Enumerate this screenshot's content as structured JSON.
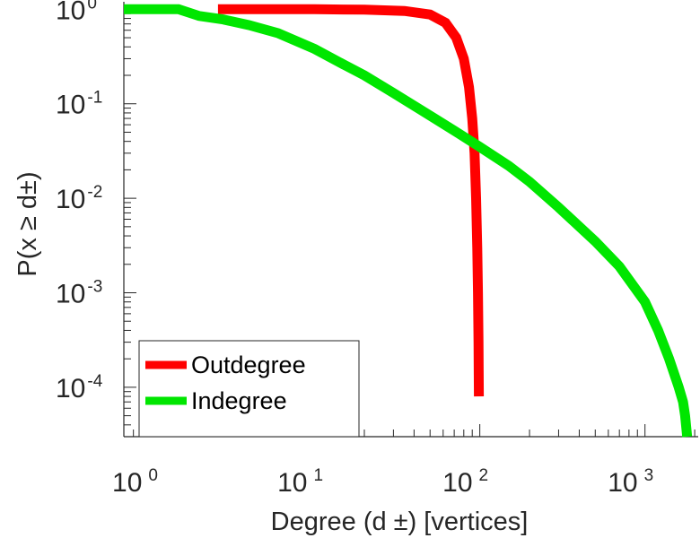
{
  "chart_data": {
    "type": "line",
    "scale": {
      "x": "log",
      "y": "log"
    },
    "xlabel": "Degree (d  ±) [vertices]",
    "ylabel": "P(x ≥ d±)",
    "xlim": [
      0.7,
      2100
    ],
    "ylim": [
      3e-05,
      1.2
    ],
    "x_ticks": [
      {
        "base": "10",
        "exp": "0",
        "value": 1
      },
      {
        "base": "10",
        "exp": "1",
        "value": 10
      },
      {
        "base": "10",
        "exp": "2",
        "value": 100
      },
      {
        "base": "10",
        "exp": "3",
        "value": 1000
      }
    ],
    "y_ticks": [
      {
        "base": "10",
        "exp": "0",
        "value": 1
      },
      {
        "base": "10",
        "exp": "-1",
        "value": 0.1
      },
      {
        "base": "10",
        "exp": "-2",
        "value": 0.01
      },
      {
        "base": "10",
        "exp": "-3",
        "value": 0.001
      },
      {
        "base": "10",
        "exp": "-4",
        "value": 0.0001
      }
    ],
    "legend": {
      "position": "bottom-left"
    },
    "series": [
      {
        "name": "Outdegree",
        "color": "#ff0000",
        "x": [
          2.6,
          5,
          10,
          20,
          35,
          50,
          62,
          72,
          80,
          86,
          90,
          93,
          95,
          96.5,
          97.5,
          98.2,
          98.5,
          98.7
        ],
        "y": [
          1.0,
          1.0,
          1.0,
          0.99,
          0.96,
          0.88,
          0.72,
          0.5,
          0.3,
          0.15,
          0.07,
          0.03,
          0.01,
          0.003,
          0.001,
          0.0003,
          0.00015,
          8e-05
        ]
      },
      {
        "name": "Indegree",
        "color": "#00e600",
        "x": [
          0.7,
          1,
          1.5,
          2,
          2.8,
          4,
          6,
          10,
          15,
          20,
          30,
          50,
          70,
          100,
          150,
          200,
          300,
          500,
          700,
          1000,
          1200,
          1400,
          1600,
          1700,
          1750,
          1800
        ],
        "y": [
          1.0,
          1.0,
          1.0,
          0.85,
          0.78,
          0.68,
          0.56,
          0.38,
          0.26,
          0.2,
          0.13,
          0.075,
          0.052,
          0.035,
          0.022,
          0.015,
          0.008,
          0.0035,
          0.0019,
          0.0008,
          0.0004,
          0.0002,
          0.0001,
          7e-05,
          5e-05,
          3e-05
        ]
      }
    ]
  }
}
